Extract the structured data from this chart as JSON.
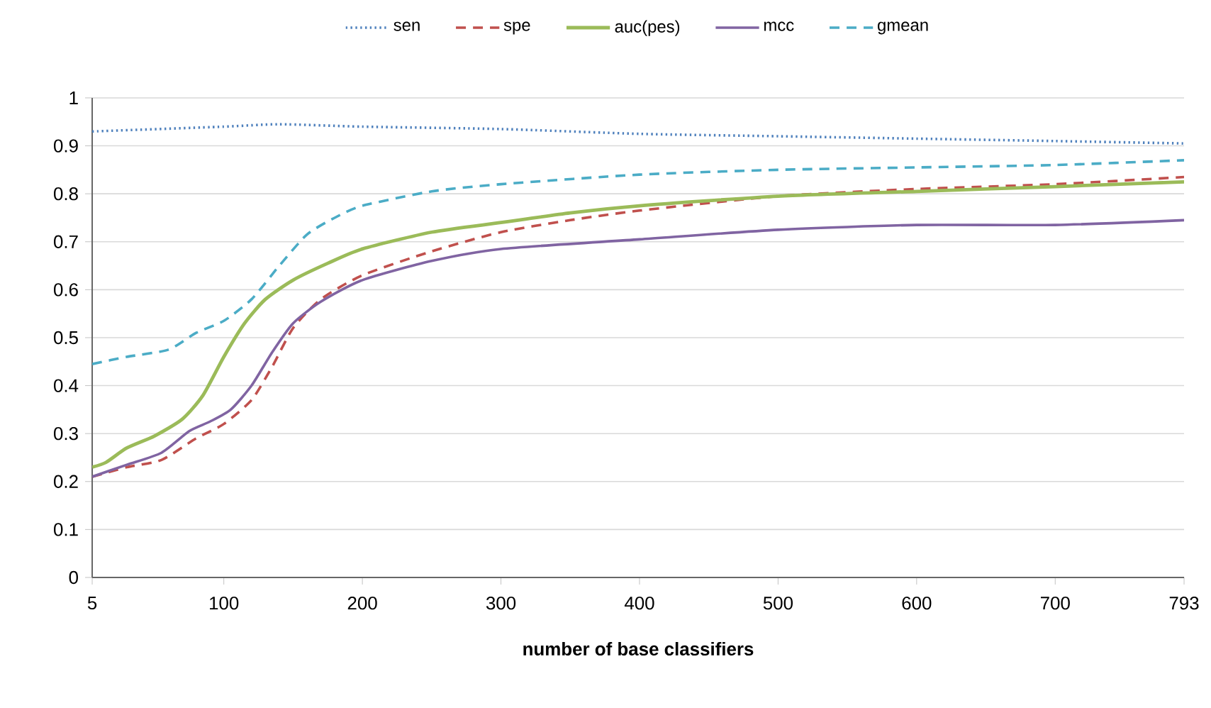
{
  "chart_data": {
    "type": "line",
    "xlabel": "**number of base classifiers**",
    "xlim": [
      5,
      793
    ],
    "xticks": [
      5,
      100,
      200,
      300,
      400,
      500,
      600,
      700,
      793
    ],
    "ylim": [
      0,
      1
    ],
    "yticks": [
      0,
      0.1,
      0.2,
      0.3,
      0.4,
      0.5,
      0.6,
      0.7,
      0.8,
      0.9,
      1
    ],
    "grid": "y",
    "legend": "top",
    "marker": "none",
    "series": [
      {
        "name": "sen",
        "color": "#4f81bd",
        "line_style": "dotted",
        "x": [
          5,
          100,
          140,
          200,
          300,
          400,
          500,
          600,
          700,
          793
        ],
        "values": [
          0.93,
          0.94,
          0.945,
          0.94,
          0.935,
          0.925,
          0.92,
          0.915,
          0.91,
          0.905
        ]
      },
      {
        "name": "spe",
        "color": "#c0504d",
        "line_style": "dashed",
        "x": [
          5,
          30,
          55,
          80,
          100,
          120,
          135,
          150,
          170,
          200,
          250,
          300,
          350,
          400,
          500,
          600,
          700,
          793
        ],
        "values": [
          0.21,
          0.23,
          0.245,
          0.29,
          0.32,
          0.37,
          0.44,
          0.52,
          0.58,
          0.63,
          0.68,
          0.72,
          0.745,
          0.765,
          0.795,
          0.81,
          0.82,
          0.835
        ]
      },
      {
        "name": "auc(pes)",
        "color": "#9bbb59",
        "line_style": "solid",
        "x": [
          5,
          15,
          30,
          50,
          70,
          85,
          100,
          115,
          130,
          150,
          175,
          200,
          250,
          300,
          350,
          400,
          500,
          600,
          700,
          793
        ],
        "values": [
          0.23,
          0.24,
          0.27,
          0.295,
          0.33,
          0.38,
          0.46,
          0.53,
          0.58,
          0.62,
          0.655,
          0.685,
          0.72,
          0.74,
          0.76,
          0.775,
          0.795,
          0.805,
          0.815,
          0.825
        ]
      },
      {
        "name": "mcc",
        "color": "#8064a2",
        "line_style": "solid",
        "x": [
          5,
          30,
          55,
          75,
          90,
          105,
          120,
          135,
          150,
          170,
          200,
          250,
          300,
          400,
          500,
          600,
          700,
          793
        ],
        "values": [
          0.21,
          0.235,
          0.26,
          0.305,
          0.325,
          0.35,
          0.4,
          0.47,
          0.53,
          0.575,
          0.62,
          0.66,
          0.685,
          0.705,
          0.725,
          0.735,
          0.735,
          0.745
        ]
      },
      {
        "name": "gmean",
        "color": "#4bacc6",
        "line_style": "dashed",
        "x": [
          5,
          30,
          60,
          80,
          100,
          120,
          140,
          160,
          180,
          200,
          250,
          300,
          400,
          500,
          600,
          700,
          793
        ],
        "values": [
          0.445,
          0.46,
          0.475,
          0.51,
          0.535,
          0.58,
          0.65,
          0.715,
          0.75,
          0.775,
          0.805,
          0.82,
          0.84,
          0.85,
          0.855,
          0.86,
          0.87
        ]
      }
    ]
  }
}
